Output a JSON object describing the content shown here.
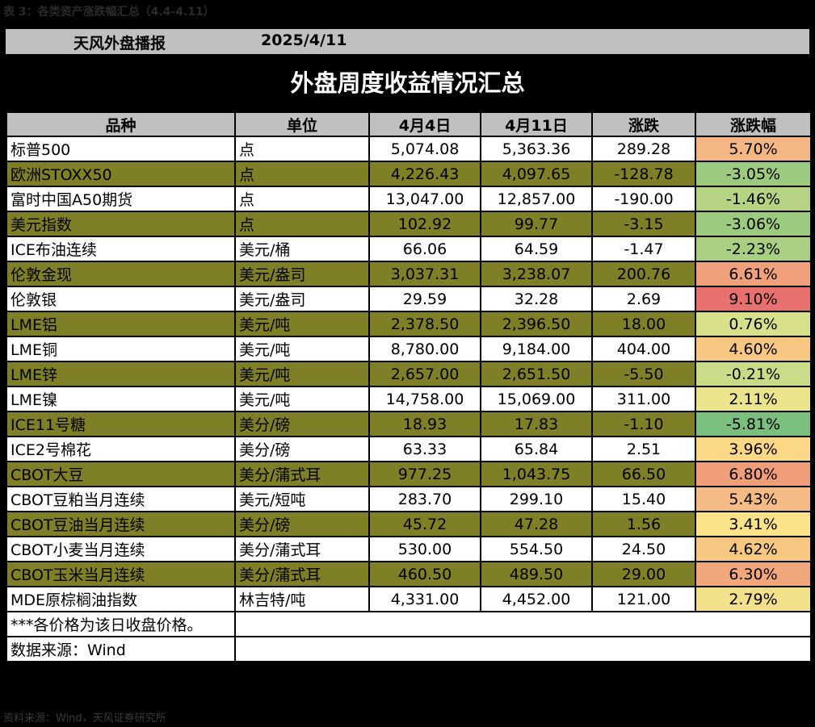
{
  "caption": "表 3：各类资产涨跌幅汇总（4.4-4.11）",
  "header": {
    "brand": "天风外盘播报",
    "date": "2025/4/11"
  },
  "title": "外盘周度收益情况汇总",
  "columns": [
    "品种",
    "单位",
    "4月4日",
    "4月11日",
    "涨跌",
    "涨跌幅"
  ],
  "rows": [
    {
      "name": "标普500",
      "unit": "点",
      "prev": "5,074.08",
      "curr": "5,363.36",
      "chg": "289.28",
      "pct": "5.70%",
      "pct_color": "#f4b784",
      "stripe": "w"
    },
    {
      "name": "欧洲STOXX50",
      "unit": "点",
      "prev": "4,226.43",
      "curr": "4,097.65",
      "chg": "-128.78",
      "pct": "-3.05%",
      "pct_color": "#9ccb7f",
      "stripe": "o"
    },
    {
      "name": "富时中国A50期货",
      "unit": "点",
      "prev": "13,047.00",
      "curr": "12,857.00",
      "chg": "-190.00",
      "pct": "-1.46%",
      "pct_color": "#b4d484",
      "stripe": "w"
    },
    {
      "name": "美元指数",
      "unit": "点",
      "prev": "102.92",
      "curr": "99.77",
      "chg": "-3.15",
      "pct": "-3.06%",
      "pct_color": "#9ccb7f",
      "stripe": "o"
    },
    {
      "name": "ICE布油连续",
      "unit": "美元/桶",
      "prev": "66.06",
      "curr": "64.59",
      "chg": "-1.47",
      "pct": "-2.23%",
      "pct_color": "#a8cf82",
      "stripe": "w"
    },
    {
      "name": "伦敦金现",
      "unit": "美元/盎司",
      "prev": "3,037.31",
      "curr": "3,238.07",
      "chg": "200.76",
      "pct": "6.61%",
      "pct_color": "#f0a07a",
      "stripe": "o"
    },
    {
      "name": "伦敦银",
      "unit": "美元/盎司",
      "prev": "29.59",
      "curr": "32.28",
      "chg": "2.69",
      "pct": "9.10%",
      "pct_color": "#e8706e",
      "stripe": "w"
    },
    {
      "name": "LME铝",
      "unit": "美元/吨",
      "prev": "2,378.50",
      "curr": "2,396.50",
      "chg": "18.00",
      "pct": "0.76%",
      "pct_color": "#d9e08a",
      "stripe": "o"
    },
    {
      "name": "LME铜",
      "unit": "美元/吨",
      "prev": "8,780.00",
      "curr": "9,184.00",
      "chg": "404.00",
      "pct": "4.60%",
      "pct_color": "#f8c883",
      "stripe": "w"
    },
    {
      "name": "LME锌",
      "unit": "美元/吨",
      "prev": "2,657.00",
      "curr": "2,651.50",
      "chg": "-5.50",
      "pct": "-0.21%",
      "pct_color": "#cadc88",
      "stripe": "o"
    },
    {
      "name": "LME镍",
      "unit": "美元/吨",
      "prev": "14,758.00",
      "curr": "15,069.00",
      "chg": "311.00",
      "pct": "2.11%",
      "pct_color": "#eae48c",
      "stripe": "w"
    },
    {
      "name": "ICE11号糖",
      "unit": "美分/磅",
      "prev": "18.93",
      "curr": "17.83",
      "chg": "-1.10",
      "pct": "-5.81%",
      "pct_color": "#7bbf7e",
      "stripe": "o"
    },
    {
      "name": "ICE2号棉花",
      "unit": "美分/磅",
      "prev": "63.33",
      "curr": "65.84",
      "chg": "2.51",
      "pct": "3.96%",
      "pct_color": "#fad886",
      "stripe": "w"
    },
    {
      "name": "CBOT大豆",
      "unit": "美分/蒲式耳",
      "prev": "977.25",
      "curr": "1,043.75",
      "chg": "66.50",
      "pct": "6.80%",
      "pct_color": "#f09d7a",
      "stripe": "o"
    },
    {
      "name": "CBOT豆粕当月连续",
      "unit": "美元/短吨",
      "prev": "283.70",
      "curr": "299.10",
      "chg": "15.40",
      "pct": "5.43%",
      "pct_color": "#f5bb84",
      "stripe": "w"
    },
    {
      "name": "CBOT豆油当月连续",
      "unit": "美分/磅",
      "prev": "45.72",
      "curr": "47.28",
      "chg": "1.56",
      "pct": "3.41%",
      "pct_color": "#fbe38a",
      "stripe": "o"
    },
    {
      "name": "CBOT小麦当月连续",
      "unit": "美分/蒲式耳",
      "prev": "530.00",
      "curr": "554.50",
      "chg": "24.50",
      "pct": "4.62%",
      "pct_color": "#f8c883",
      "stripe": "w"
    },
    {
      "name": "CBOT玉米当月连续",
      "unit": "美分/蒲式耳",
      "prev": "460.50",
      "curr": "489.50",
      "chg": "29.00",
      "pct": "6.30%",
      "pct_color": "#f2a67b",
      "stripe": "o"
    },
    {
      "name": "MDE原棕榈油指数",
      "unit": "林吉特/吨",
      "prev": "4,331.00",
      "curr": "4,452.00",
      "chg": "121.00",
      "pct": "2.79%",
      "pct_color": "#f1e18a",
      "stripe": "w"
    }
  ],
  "notes": [
    "***各价格为该日收盘价格。",
    "数据来源：Wind"
  ],
  "source": "资料来源：Wind，天风证券研究所"
}
